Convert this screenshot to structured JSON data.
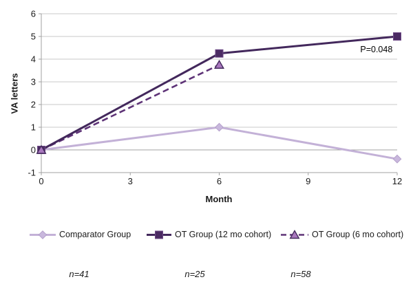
{
  "chart_data": {
    "type": "line",
    "title": "",
    "ylabel": "VA letters",
    "xlabel": "Month",
    "xlim": [
      0,
      12
    ],
    "ylim": [
      -1,
      6
    ],
    "x_ticks": [
      0,
      3,
      6,
      9,
      12
    ],
    "y_ticks": [
      6,
      5,
      4,
      3,
      2,
      1,
      0,
      -1
    ],
    "grid": "horizontal",
    "legend_position": "bottom",
    "colors": {
      "gridline": "#c9c9c9",
      "zero_line": "#a0a0a0",
      "axis": "#a0a0a0",
      "text": "#1a1a1a"
    },
    "series": [
      {
        "name": "Comparator Group",
        "marker": "diamond",
        "line_style": "solid",
        "color": "#c3b1d7",
        "marker_fill": "#c9b8dd",
        "marker_stroke": "#b4a0cb",
        "x": [
          0,
          6,
          12
        ],
        "y": [
          0,
          1.0,
          -0.4
        ]
      },
      {
        "name": "OT Group (12 mo cohort)",
        "marker": "square",
        "line_style": "solid",
        "color": "#43285c",
        "marker_fill": "#4b2b63",
        "marker_stroke": "#6f4b87",
        "x": [
          0,
          6,
          12
        ],
        "y": [
          0,
          4.25,
          5.0
        ]
      },
      {
        "name": "OT Group (6 mo cohort)",
        "marker": "triangle",
        "line_style": "dashed",
        "color": "#5e3377",
        "marker_fill": "#a978be",
        "marker_stroke": "#432a5c",
        "x": [
          0,
          6
        ],
        "y": [
          0,
          3.75
        ]
      }
    ],
    "annotations": [
      {
        "text": "P=0.048",
        "month": 11.3,
        "value": 4.3
      }
    ]
  },
  "footnotes": {
    "items": [
      "n=41",
      "n=25",
      "n=58"
    ]
  }
}
